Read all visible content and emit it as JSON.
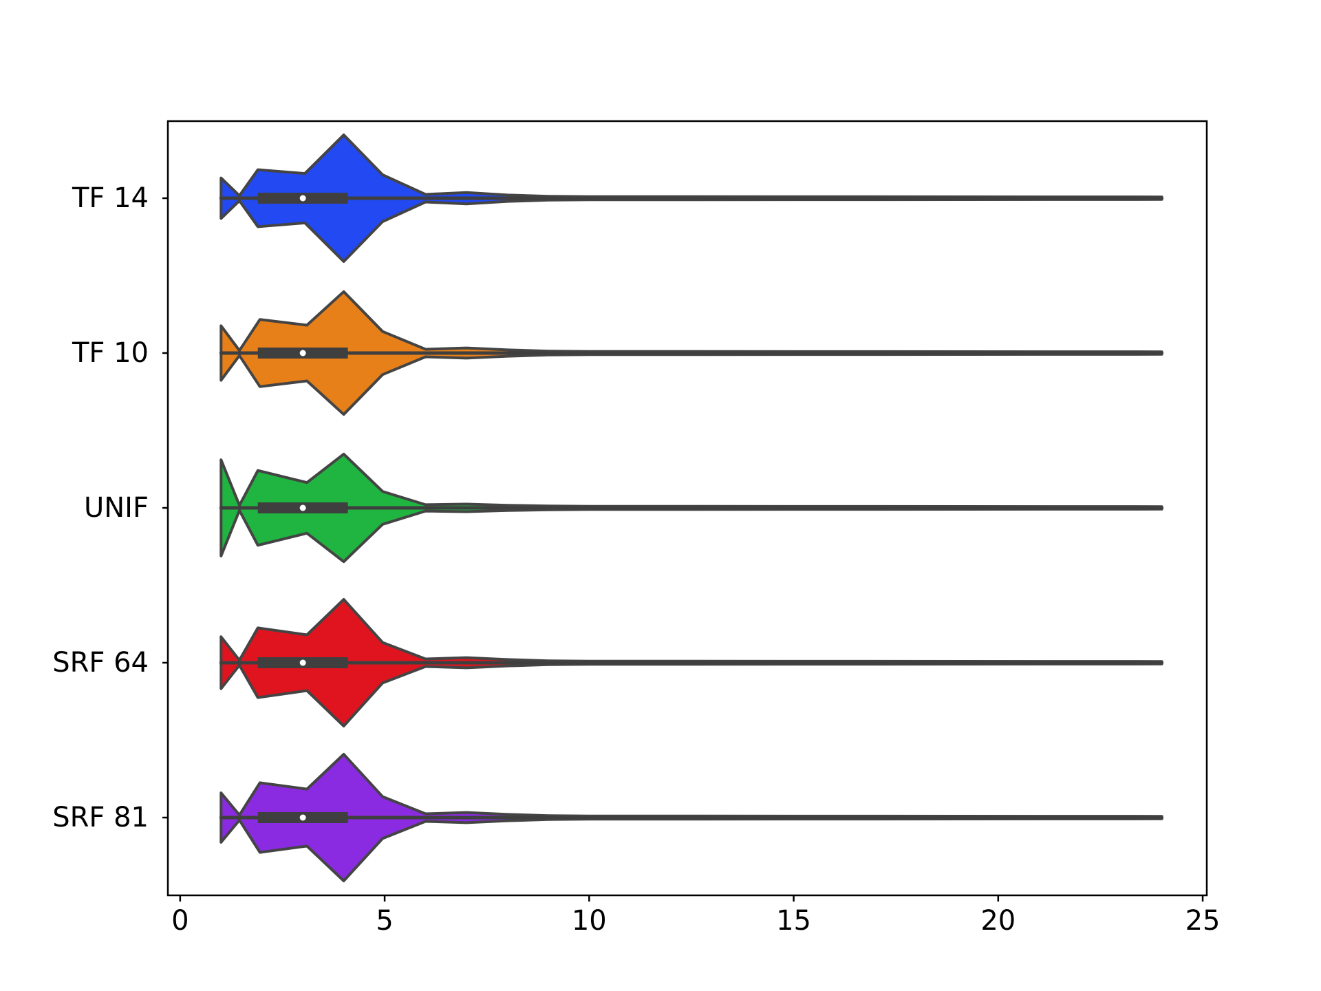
{
  "chart_data": {
    "type": "violin",
    "orientation": "horizontal",
    "title": "",
    "xlabel": "",
    "ylabel": "",
    "xlim": [
      -0.3,
      25.1
    ],
    "xticks": [
      0,
      5,
      10,
      15,
      20,
      25
    ],
    "xtick_labels": [
      "0",
      "5",
      "10",
      "15",
      "20",
      "25"
    ],
    "grid": false,
    "legend": "none",
    "box_color": "#3f3f3f",
    "outline_color": "#444444",
    "categories": [
      "TF 14",
      "TF 10",
      "UNIF",
      "SRF 64",
      "SRF 81"
    ],
    "series": [
      {
        "color": "#2249f2",
        "min": 1,
        "q1": 2,
        "median": 3,
        "q3": 4,
        "max": 24,
        "density": [
          [
            1,
            0.32
          ],
          [
            1.45,
            0.04
          ],
          [
            1.9,
            0.45
          ],
          [
            3.05,
            0.39
          ],
          [
            4,
            1.0
          ],
          [
            4.95,
            0.37
          ],
          [
            6,
            0.06
          ],
          [
            7,
            0.09
          ],
          [
            8,
            0.05
          ],
          [
            9,
            0.03
          ],
          [
            10,
            0.025
          ],
          [
            11,
            0.025
          ],
          [
            24,
            0.02
          ]
        ]
      },
      {
        "color": "#e8801a",
        "min": 1,
        "q1": 2,
        "median": 3,
        "q3": 4,
        "max": 24,
        "density": [
          [
            1,
            0.43
          ],
          [
            1.45,
            0.04
          ],
          [
            1.95,
            0.53
          ],
          [
            3.1,
            0.44
          ],
          [
            4,
            0.97
          ],
          [
            4.95,
            0.34
          ],
          [
            6,
            0.06
          ],
          [
            7,
            0.08
          ],
          [
            8,
            0.05
          ],
          [
            9,
            0.03
          ],
          [
            10,
            0.025
          ],
          [
            11,
            0.025
          ],
          [
            24,
            0.02
          ]
        ]
      },
      {
        "color": "#1fb540",
        "min": 1,
        "q1": 2,
        "median": 3,
        "q3": 4,
        "max": 24,
        "density": [
          [
            1,
            0.76
          ],
          [
            1.45,
            0.04
          ],
          [
            1.9,
            0.59
          ],
          [
            3.1,
            0.4
          ],
          [
            4,
            0.85
          ],
          [
            4.95,
            0.26
          ],
          [
            6,
            0.05
          ],
          [
            7,
            0.06
          ],
          [
            8,
            0.04
          ],
          [
            9,
            0.03
          ],
          [
            10,
            0.025
          ],
          [
            11,
            0.025
          ],
          [
            24,
            0.02
          ]
        ]
      },
      {
        "color": "#e0141f",
        "min": 1,
        "q1": 2,
        "median": 3,
        "q3": 4,
        "max": 24,
        "density": [
          [
            1,
            0.41
          ],
          [
            1.45,
            0.04
          ],
          [
            1.9,
            0.55
          ],
          [
            3.1,
            0.44
          ],
          [
            4,
            1.0
          ],
          [
            4.95,
            0.32
          ],
          [
            6,
            0.06
          ],
          [
            7,
            0.08
          ],
          [
            8,
            0.05
          ],
          [
            9,
            0.03
          ],
          [
            10,
            0.025
          ],
          [
            11,
            0.025
          ],
          [
            24,
            0.02
          ]
        ]
      },
      {
        "color": "#8a2be2",
        "min": 1,
        "q1": 2,
        "median": 3,
        "q3": 4,
        "max": 24,
        "density": [
          [
            1,
            0.39
          ],
          [
            1.45,
            0.04
          ],
          [
            1.95,
            0.55
          ],
          [
            3.1,
            0.45
          ],
          [
            4,
            1.0
          ],
          [
            4.95,
            0.33
          ],
          [
            6,
            0.06
          ],
          [
            7,
            0.08
          ],
          [
            8,
            0.05
          ],
          [
            9,
            0.03
          ],
          [
            10,
            0.025
          ],
          [
            11,
            0.025
          ],
          [
            24,
            0.02
          ]
        ]
      }
    ]
  }
}
